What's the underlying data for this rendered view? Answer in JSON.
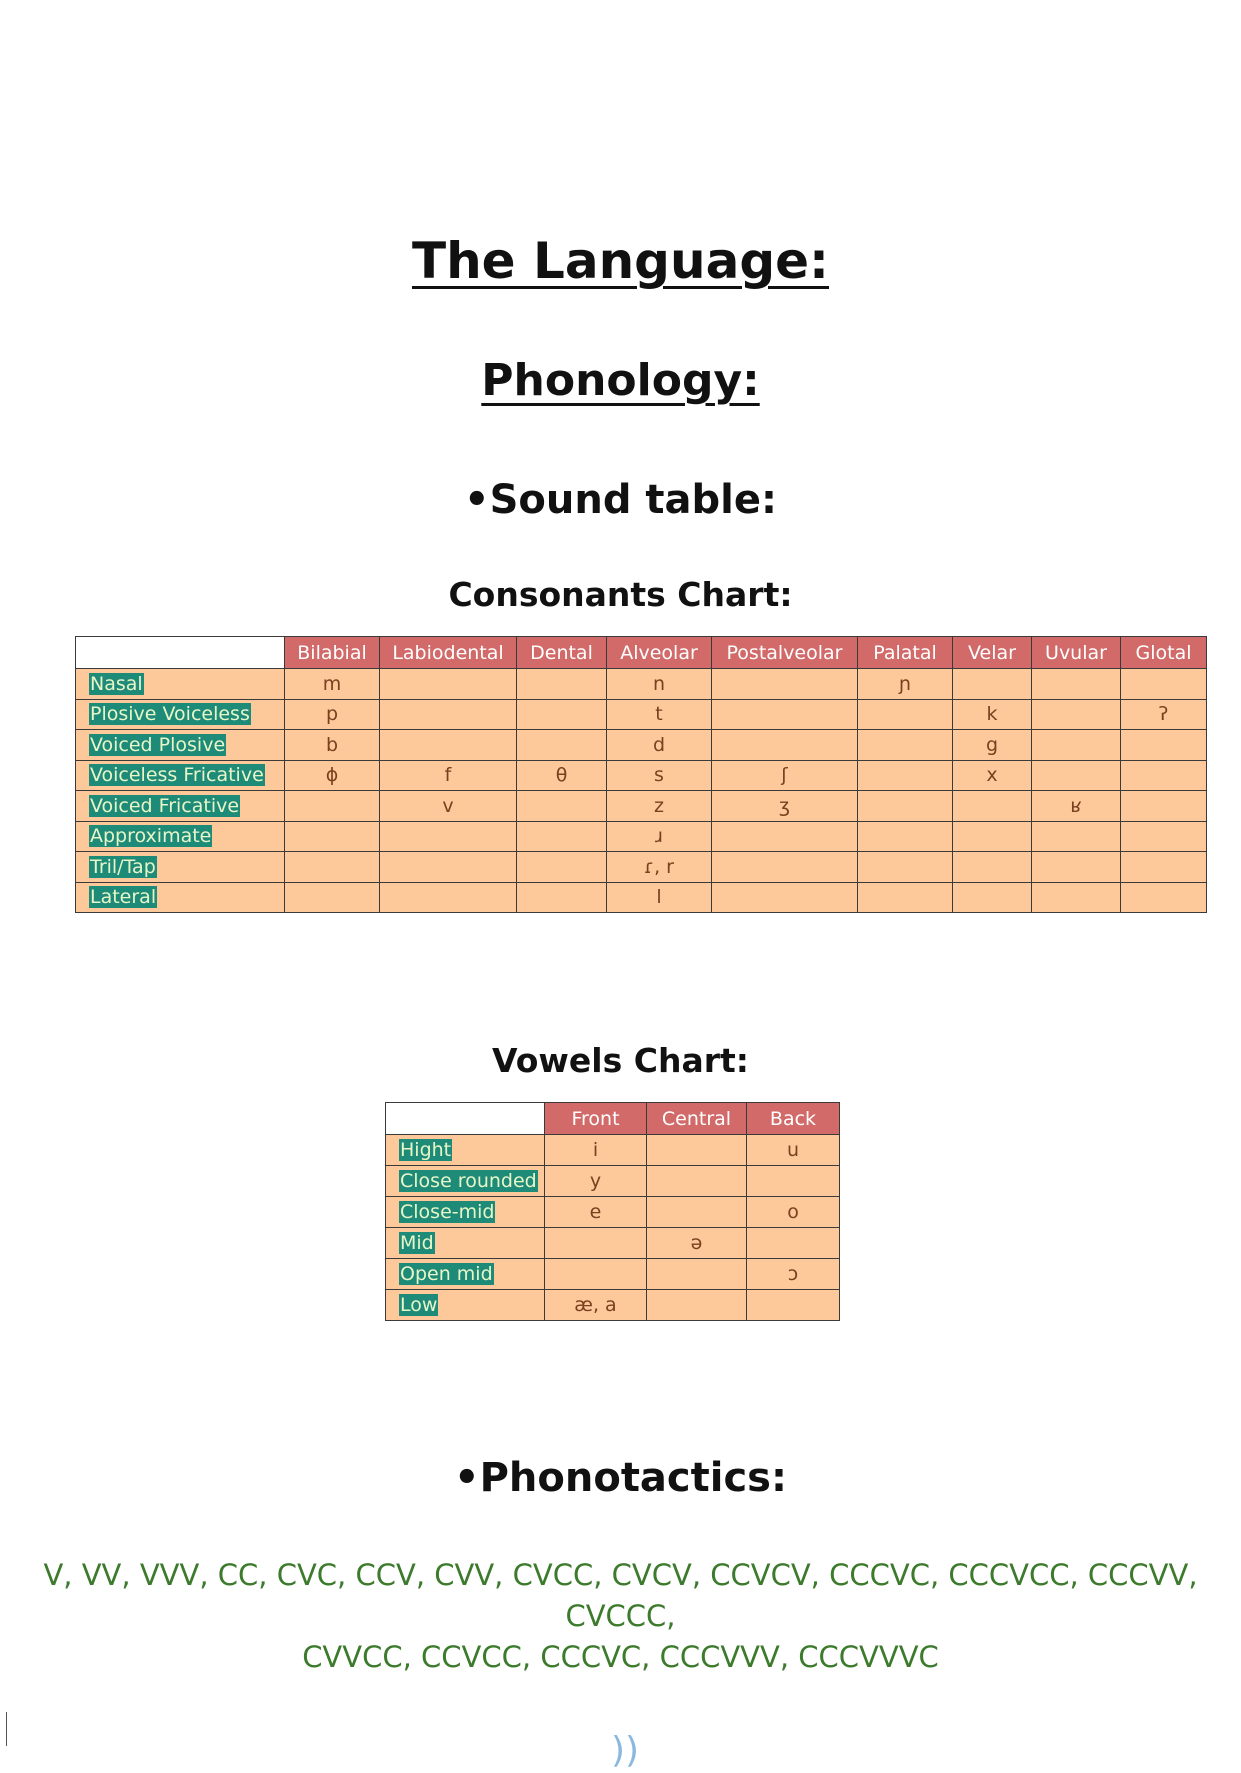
{
  "page": {
    "title": "The Language:",
    "subtitle": "Phonology:",
    "sound_table_heading": "•Sound table:",
    "phonotactics_heading": "•Phonotactics:",
    "page_mark": "))"
  },
  "consonants": {
    "heading": "Consonants Chart:",
    "columns": [
      "Bilabial",
      "Labiodental",
      "Dental",
      "Alveolar",
      "Postalveolar",
      "Palatal",
      "Velar",
      "Uvular",
      "Glotal"
    ],
    "rows": [
      {
        "label": "Nasal",
        "cells": [
          "m",
          "",
          "",
          "n",
          "",
          "ɲ",
          "",
          "",
          ""
        ]
      },
      {
        "label": "Plosive Voiceless",
        "cells": [
          "p",
          "",
          "",
          "t",
          "",
          "",
          "k",
          "",
          "ʔ"
        ]
      },
      {
        "label": "Voiced Plosive",
        "cells": [
          "b",
          "",
          "",
          "d",
          "",
          "",
          "g",
          "",
          ""
        ]
      },
      {
        "label": "Voiceless Fricative",
        "cells": [
          "ɸ",
          "f",
          "θ",
          "s",
          "ʃ",
          "",
          "x",
          "",
          ""
        ]
      },
      {
        "label": "Voiced Fricative",
        "cells": [
          "",
          "v",
          "",
          "z",
          "ʒ",
          "",
          "",
          "ʁ",
          ""
        ]
      },
      {
        "label": "Approximate",
        "cells": [
          "",
          "",
          "",
          "ɹ",
          "",
          "",
          "",
          "",
          ""
        ]
      },
      {
        "label": "Tril/Tap",
        "cells": [
          "",
          "",
          "",
          "ɾ, r",
          "",
          "",
          "",
          "",
          ""
        ]
      },
      {
        "label": "Lateral",
        "cells": [
          "",
          "",
          "",
          "l",
          "",
          "",
          "",
          "",
          ""
        ]
      }
    ]
  },
  "vowels": {
    "heading": "Vowels Chart:",
    "columns": [
      "Front",
      "Central",
      "Back"
    ],
    "rows": [
      {
        "label": "Hight",
        "cells": [
          "i",
          "",
          "u"
        ]
      },
      {
        "label": "Close rounded",
        "cells": [
          "y",
          "",
          ""
        ]
      },
      {
        "label": "Close-mid",
        "cells": [
          "e",
          "",
          "o"
        ]
      },
      {
        "label": "Mid",
        "cells": [
          "",
          "ə",
          ""
        ]
      },
      {
        "label": "Open mid",
        "cells": [
          "",
          "",
          "ɔ"
        ]
      },
      {
        "label": "Low",
        "cells": [
          "æ, a",
          "",
          ""
        ]
      }
    ]
  },
  "phonotactics": {
    "line1": "V, VV, VVV, CC, CVC, CCV, CVV, CVCC, CVCV, CCVCV, CCCVC, CCCVCC, CCCVV, CVCCC,",
    "line2": "CVVCC, CCVCC, CCCVC, CCCVVV, CCCVVVC"
  },
  "colors": {
    "header_fill": "#d26a6a",
    "cell_fill": "#fdc89a",
    "label_highlight": "#1e8a78",
    "phonotactics_text": "#3c7a2c"
  }
}
